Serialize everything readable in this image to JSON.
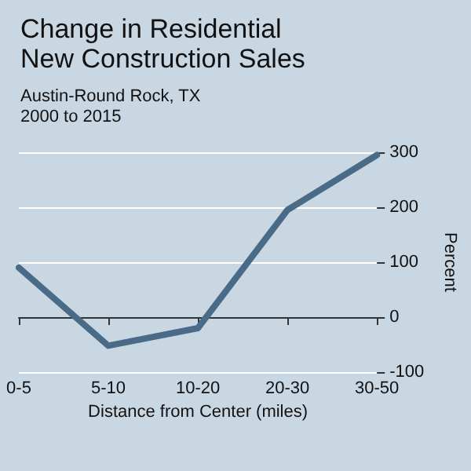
{
  "chart_data": {
    "type": "line",
    "title": "Change in Residential\nNew Construction Sales",
    "subtitle": "Austin-Round Rock, TX\n2000 to 2015",
    "xlabel": "Distance from Center (miles)",
    "ylabel": "Percent",
    "categories": [
      "0-5",
      "5-10",
      "10-20",
      "20-30",
      "30-50"
    ],
    "series": [
      {
        "color": "#4a6b87",
        "values": [
          90,
          -52,
          -20,
          195,
          295
        ]
      }
    ],
    "ylim": [
      -100,
      300
    ],
    "yticks": [
      -100,
      0,
      100,
      200,
      300
    ],
    "grid": "y",
    "marker": "none",
    "line_style": "solid"
  }
}
